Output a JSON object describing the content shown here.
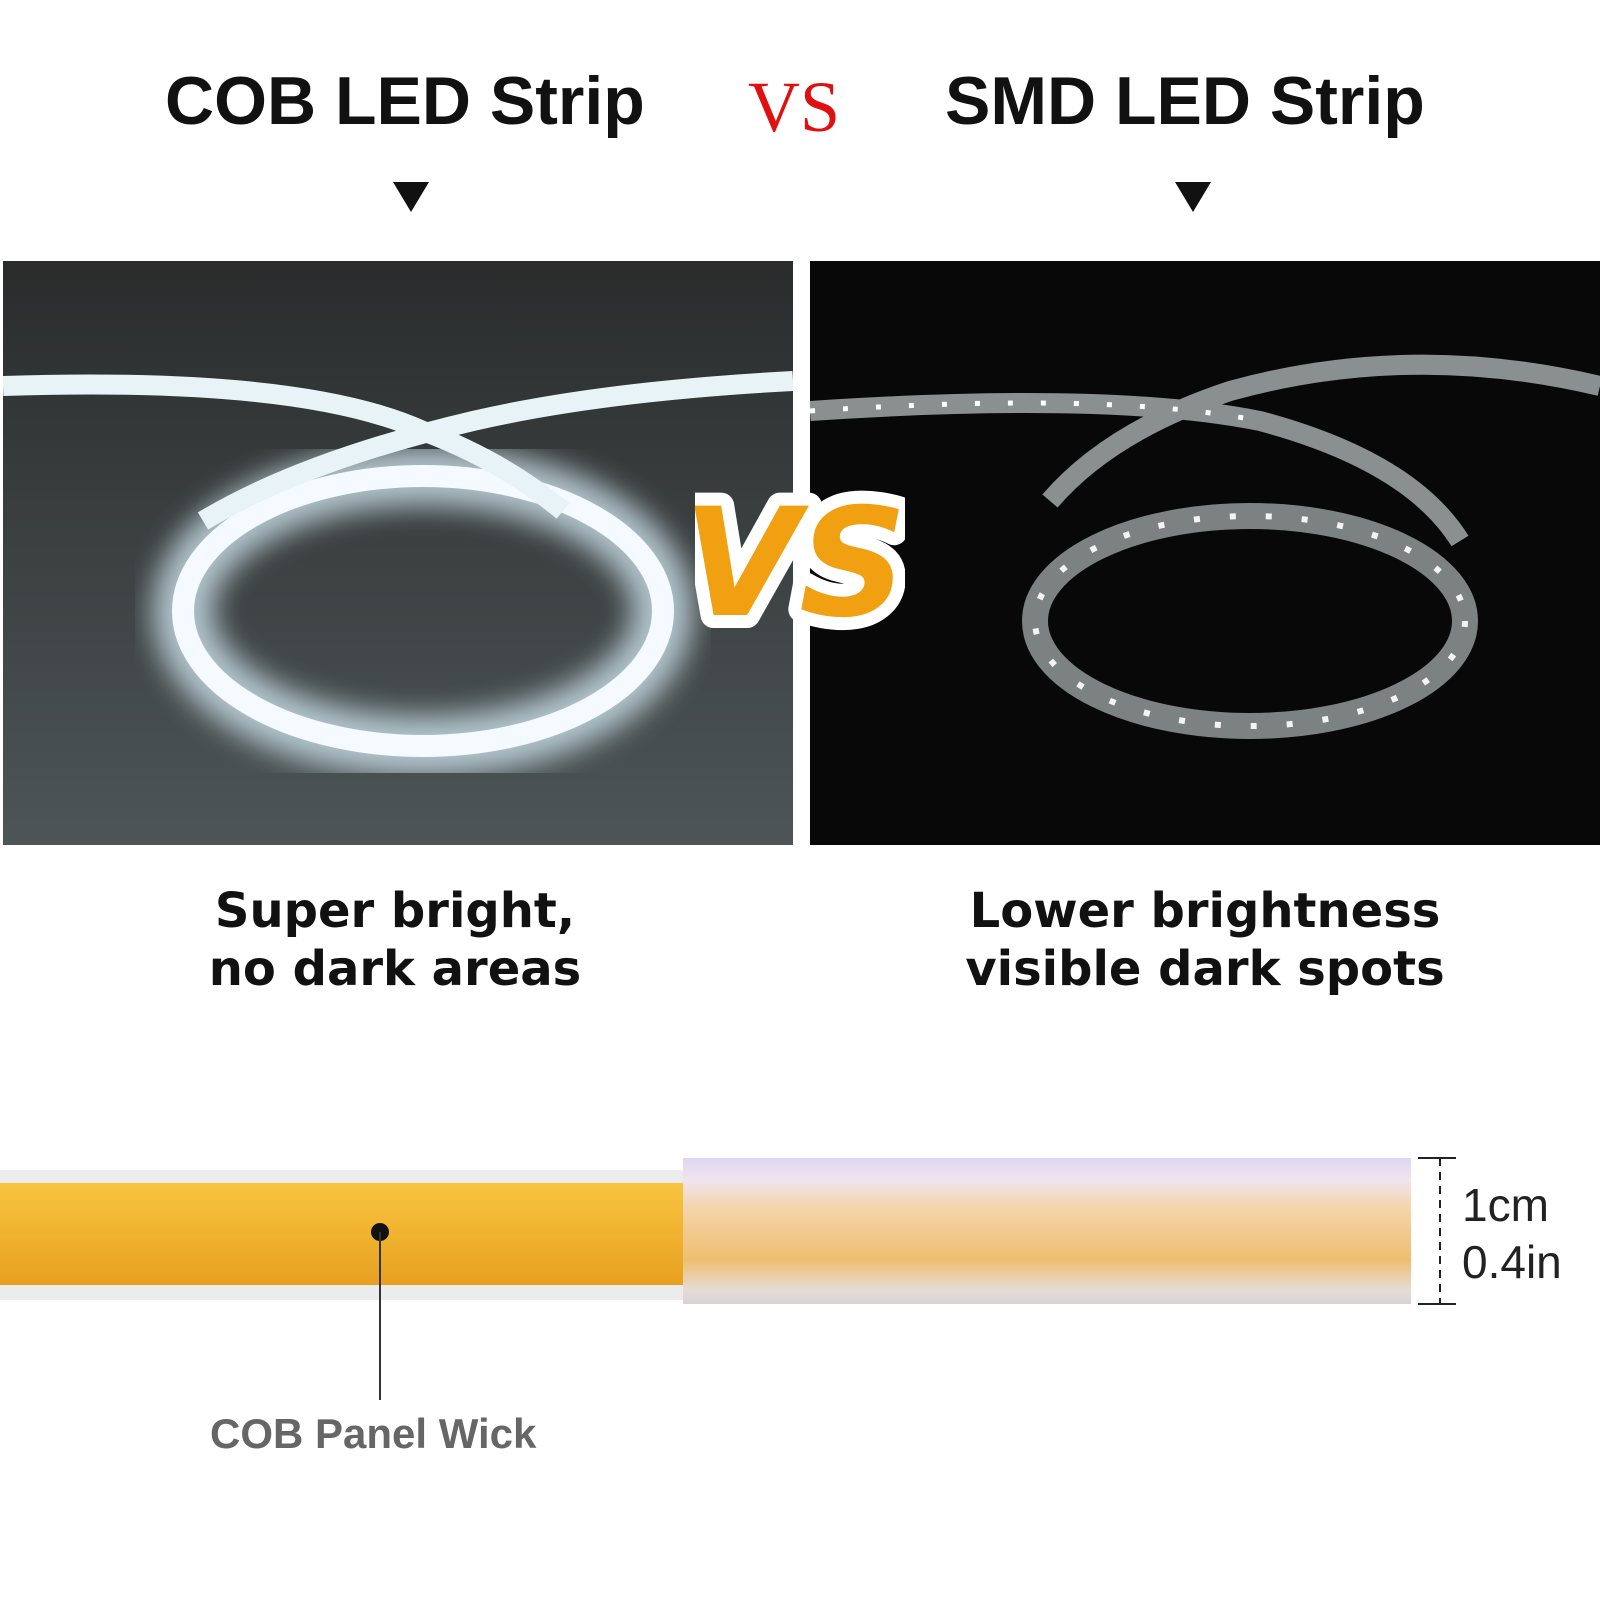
{
  "header": {
    "left_title": "COB LED Strip",
    "vs_label": "VS",
    "right_title": "SMD LED Strip"
  },
  "badge": {
    "label": "VS",
    "color": "#f0a010"
  },
  "captions": {
    "left_line1": "Super bright,",
    "left_line2": "no dark areas",
    "right_line1": "Lower brightness",
    "right_line2": "visible dark spots"
  },
  "diagram": {
    "height_cm": "1cm",
    "height_in": "0.4in",
    "callout": "COB Panel Wick",
    "wick_color": "#f5b230"
  }
}
